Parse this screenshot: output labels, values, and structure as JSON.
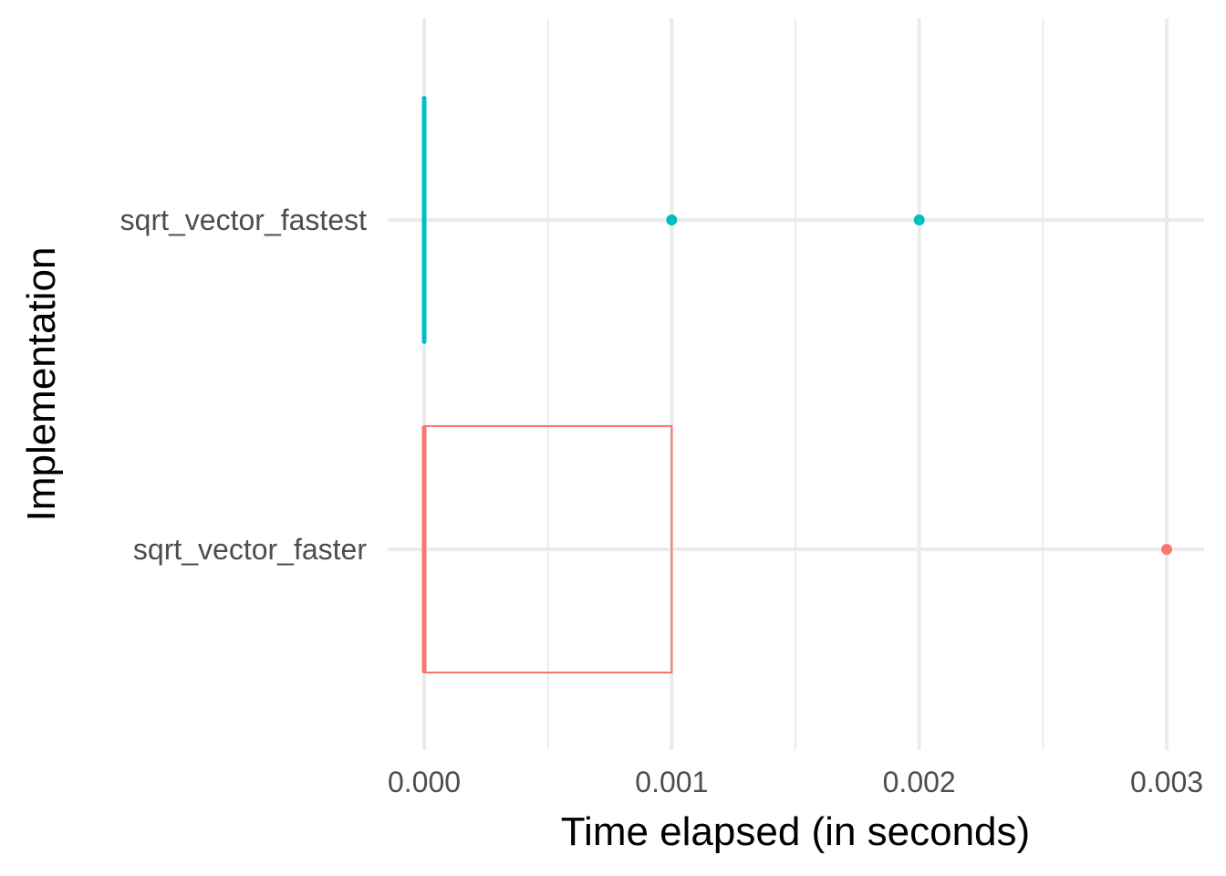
{
  "chart_data": {
    "type": "boxplot",
    "orientation": "horizontal",
    "xlabel": "Time elapsed (in seconds)",
    "ylabel": "Implementation",
    "xlim": [
      0,
      0.003
    ],
    "x_ticks": [
      {
        "value": 0.0,
        "label": "0.000"
      },
      {
        "value": 0.001,
        "label": "0.001"
      },
      {
        "value": 0.002,
        "label": "0.002"
      },
      {
        "value": 0.003,
        "label": "0.003"
      }
    ],
    "categories": [
      "sqrt_vector_faster",
      "sqrt_vector_fastest"
    ],
    "grid": true,
    "legend": "none",
    "series": [
      {
        "category": "sqrt_vector_faster",
        "color": "#F8766D",
        "min": 0.0,
        "q1": 0.0,
        "median": 0.0,
        "q3": 0.001,
        "max": 0.001,
        "outliers": [
          0.003
        ]
      },
      {
        "category": "sqrt_vector_fastest",
        "color": "#00BFC4",
        "min": 0.0,
        "q1": 0.0,
        "median": 0.0,
        "q3": 0.0,
        "max": 0.0,
        "outliers": [
          0.001,
          0.002
        ]
      }
    ]
  }
}
